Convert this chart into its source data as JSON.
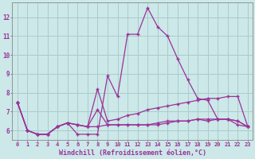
{
  "xlabel": "Windchill (Refroidissement éolien,°C)",
  "background_color": "#cce8e8",
  "grid_color": "#aacccc",
  "line_color": "#993399",
  "x_ticks": [
    0,
    1,
    2,
    3,
    4,
    5,
    6,
    7,
    8,
    9,
    10,
    11,
    12,
    13,
    14,
    15,
    16,
    17,
    18,
    19,
    20,
    21,
    22,
    23
  ],
  "y_ticks": [
    6,
    7,
    8,
    9,
    10,
    11,
    12
  ],
  "ylim": [
    5.5,
    12.8
  ],
  "xlim": [
    -0.5,
    23.5
  ],
  "series": [
    [
      7.5,
      6.0,
      5.8,
      5.8,
      6.2,
      6.4,
      5.8,
      5.8,
      5.8,
      8.9,
      7.8,
      11.1,
      11.1,
      12.5,
      11.5,
      11.0,
      9.8,
      8.7,
      7.7,
      7.6,
      6.6,
      6.6,
      6.3,
      6.2
    ],
    [
      7.5,
      6.0,
      5.8,
      5.8,
      6.2,
      6.4,
      6.3,
      6.2,
      8.2,
      6.5,
      6.6,
      6.8,
      6.9,
      7.1,
      7.2,
      7.3,
      7.4,
      7.5,
      7.6,
      7.7,
      7.7,
      7.8,
      7.8,
      6.2
    ],
    [
      7.5,
      6.0,
      5.8,
      5.8,
      6.2,
      6.4,
      6.3,
      6.2,
      7.1,
      6.3,
      6.3,
      6.3,
      6.3,
      6.3,
      6.3,
      6.4,
      6.5,
      6.5,
      6.6,
      6.6,
      6.6,
      6.6,
      6.5,
      6.2
    ],
    [
      7.5,
      6.0,
      5.8,
      5.8,
      6.2,
      6.4,
      6.3,
      6.2,
      6.2,
      6.3,
      6.3,
      6.3,
      6.3,
      6.3,
      6.4,
      6.5,
      6.5,
      6.5,
      6.6,
      6.5,
      6.6,
      6.6,
      6.5,
      6.2
    ]
  ]
}
